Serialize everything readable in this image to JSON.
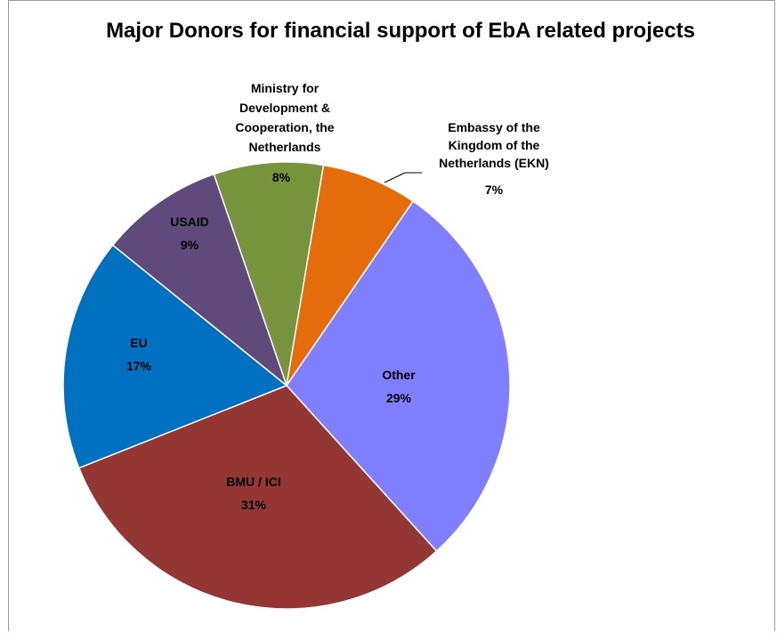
{
  "chart_data": {
    "type": "pie",
    "title": "Major Donors for financial support of EbA related projects",
    "slices": [
      {
        "name": "Ministry for Development & Cooperation,  the Netherlands",
        "value": 8,
        "label_value": "8%",
        "color": "#77933C"
      },
      {
        "name": "Embassy of the Kingdom of the Netherlands (EKN)",
        "value": 7,
        "label_value": "7%",
        "color": "#E46C0A"
      },
      {
        "name": "Other",
        "value": 29,
        "label_value": "29%",
        "color": "#7F7FFF"
      },
      {
        "name": "BMU  / ICI",
        "value": 31,
        "label_value": "31%",
        "color": "#943634"
      },
      {
        "name": "EU",
        "value": 17,
        "label_value": "17%",
        "color": "#0070C0"
      },
      {
        "name": "USAID",
        "value": 9,
        "label_value": "9%",
        "color": "#604A7B"
      }
    ],
    "legend": "none",
    "labels": {
      "ministry": [
        "Ministry for",
        "Development &",
        "Cooperation,  the",
        "Netherlands"
      ],
      "ekn": [
        "Embassy of the",
        "Kingdom of the",
        "Netherlands (EKN)"
      ]
    }
  }
}
